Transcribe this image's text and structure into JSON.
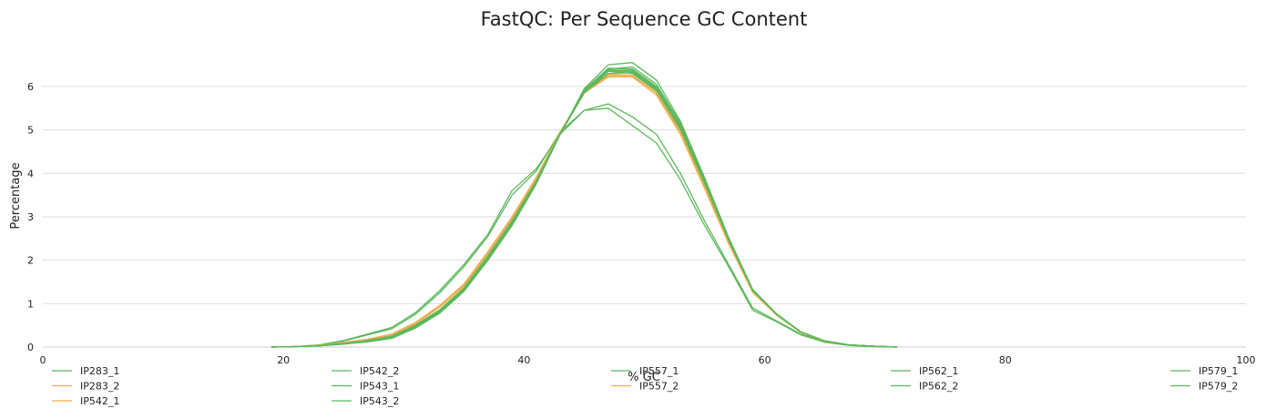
{
  "chart_data": {
    "type": "line",
    "title": "FastQC: Per Sequence GC Content",
    "xlabel": "% GC",
    "ylabel": "Percentage",
    "xlim": [
      0,
      100
    ],
    "ylim": [
      0,
      6.9
    ],
    "xticks": [
      0,
      20,
      40,
      60,
      80,
      100
    ],
    "yticks": [
      0,
      1,
      2,
      3,
      4,
      5,
      6
    ],
    "grid": "horizontal",
    "legend_position": "bottom",
    "colors": {
      "pass": "#5cb85c",
      "warn": "#f0ad4e",
      "grid": "#dddddd",
      "axis": "#cccccc"
    },
    "x": [
      19,
      21,
      23,
      25,
      27,
      29,
      31,
      33,
      35,
      37,
      39,
      41,
      43,
      45,
      47,
      49,
      51,
      53,
      55,
      57,
      59,
      61,
      63,
      65,
      67,
      69,
      71
    ],
    "series": [
      {
        "name": "IP283_1",
        "color": "#5cb85c",
        "values": [
          0,
          0.01,
          0.03,
          0.08,
          0.15,
          0.25,
          0.5,
          0.85,
          1.35,
          2.1,
          2.9,
          3.8,
          4.9,
          5.85,
          6.35,
          6.3,
          5.9,
          5.0,
          3.75,
          2.45,
          1.3,
          0.75,
          0.35,
          0.14,
          0.05,
          0.02,
          0.0
        ]
      },
      {
        "name": "IP283_2",
        "color": "#f0ad4e",
        "values": [
          0,
          0.01,
          0.04,
          0.1,
          0.17,
          0.28,
          0.54,
          0.92,
          1.4,
          2.15,
          2.95,
          3.85,
          4.95,
          5.85,
          6.25,
          6.25,
          5.85,
          4.95,
          3.7,
          2.4,
          1.28,
          0.74,
          0.34,
          0.13,
          0.05,
          0.02,
          0.0
        ]
      },
      {
        "name": "IP542_1",
        "color": "#f0ad4e",
        "values": [
          0,
          0.01,
          0.04,
          0.11,
          0.18,
          0.3,
          0.57,
          0.96,
          1.45,
          2.2,
          3.0,
          3.9,
          4.95,
          5.85,
          6.22,
          6.22,
          5.8,
          4.9,
          3.65,
          2.38,
          1.26,
          0.73,
          0.34,
          0.13,
          0.05,
          0.02,
          0.0
        ]
      },
      {
        "name": "IP542_2",
        "color": "#5cb85c",
        "values": [
          0,
          0.01,
          0.05,
          0.15,
          0.3,
          0.45,
          0.8,
          1.3,
          1.9,
          2.6,
          3.6,
          4.1,
          4.9,
          5.45,
          5.6,
          5.3,
          4.9,
          4.0,
          2.9,
          1.9,
          0.9,
          0.6,
          0.3,
          0.12,
          0.04,
          0.01,
          0.0
        ]
      },
      {
        "name": "IP543_1",
        "color": "#5cb85c",
        "values": [
          0,
          0.01,
          0.05,
          0.14,
          0.28,
          0.42,
          0.76,
          1.25,
          1.85,
          2.55,
          3.5,
          4.05,
          4.95,
          5.45,
          5.5,
          5.1,
          4.7,
          3.85,
          2.8,
          1.85,
          0.85,
          0.58,
          0.28,
          0.11,
          0.04,
          0.01,
          0.0
        ]
      },
      {
        "name": "IP543_2",
        "color": "#5cb85c",
        "values": [
          0,
          0.01,
          0.03,
          0.07,
          0.13,
          0.22,
          0.46,
          0.8,
          1.3,
          2.0,
          2.8,
          3.75,
          4.9,
          5.9,
          6.4,
          6.45,
          6.05,
          5.15,
          3.85,
          2.5,
          1.32,
          0.76,
          0.35,
          0.14,
          0.05,
          0.02,
          0.0
        ]
      },
      {
        "name": "IP557_1",
        "color": "#5cb85c",
        "values": [
          0,
          0.01,
          0.03,
          0.07,
          0.12,
          0.2,
          0.44,
          0.78,
          1.28,
          2.0,
          2.8,
          3.75,
          4.9,
          5.95,
          6.5,
          6.55,
          6.15,
          5.2,
          3.9,
          2.52,
          1.33,
          0.76,
          0.35,
          0.14,
          0.05,
          0.02,
          0.0
        ]
      },
      {
        "name": "IP557_2",
        "color": "#f0ad4e",
        "values": [
          0,
          0.01,
          0.04,
          0.1,
          0.17,
          0.28,
          0.55,
          0.93,
          1.42,
          2.18,
          2.98,
          3.88,
          4.95,
          5.85,
          6.28,
          6.26,
          5.86,
          4.96,
          3.7,
          2.42,
          1.28,
          0.74,
          0.34,
          0.13,
          0.05,
          0.02,
          0.0
        ]
      },
      {
        "name": "IP562_1",
        "color": "#5cb85c",
        "values": [
          0,
          0.01,
          0.03,
          0.08,
          0.14,
          0.24,
          0.49,
          0.84,
          1.33,
          2.08,
          2.88,
          3.8,
          4.92,
          5.88,
          6.35,
          6.35,
          5.95,
          5.05,
          3.8,
          2.47,
          1.31,
          0.75,
          0.35,
          0.14,
          0.05,
          0.02,
          0.0
        ]
      },
      {
        "name": "IP562_2",
        "color": "#5cb85c",
        "values": [
          0,
          0.01,
          0.03,
          0.08,
          0.15,
          0.25,
          0.51,
          0.86,
          1.36,
          2.1,
          2.9,
          3.82,
          4.92,
          5.86,
          6.3,
          6.32,
          5.92,
          5.02,
          3.78,
          2.46,
          1.3,
          0.75,
          0.35,
          0.14,
          0.05,
          0.02,
          0.0
        ]
      },
      {
        "name": "IP579_1",
        "color": "#5cb85c",
        "values": [
          0,
          0.01,
          0.03,
          0.07,
          0.13,
          0.22,
          0.47,
          0.82,
          1.31,
          2.04,
          2.85,
          3.78,
          4.9,
          5.92,
          6.42,
          6.4,
          6.0,
          5.1,
          3.82,
          2.48,
          1.31,
          0.76,
          0.35,
          0.14,
          0.05,
          0.02,
          0.0
        ]
      },
      {
        "name": "IP579_2",
        "color": "#5cb85c",
        "values": [
          0,
          0.01,
          0.03,
          0.08,
          0.14,
          0.23,
          0.48,
          0.83,
          1.32,
          2.06,
          2.86,
          3.79,
          4.91,
          5.9,
          6.38,
          6.37,
          5.97,
          5.07,
          3.8,
          2.47,
          1.31,
          0.75,
          0.35,
          0.14,
          0.05,
          0.02,
          0.0
        ]
      }
    ],
    "legend_columns": [
      [
        "IP283_1",
        "IP283_2",
        "IP542_1"
      ],
      [
        "IP542_2",
        "IP543_1",
        "IP543_2"
      ],
      [
        "IP557_1",
        "IP557_2"
      ],
      [
        "IP562_1",
        "IP562_2"
      ],
      [
        "IP579_1",
        "IP579_2"
      ]
    ]
  }
}
